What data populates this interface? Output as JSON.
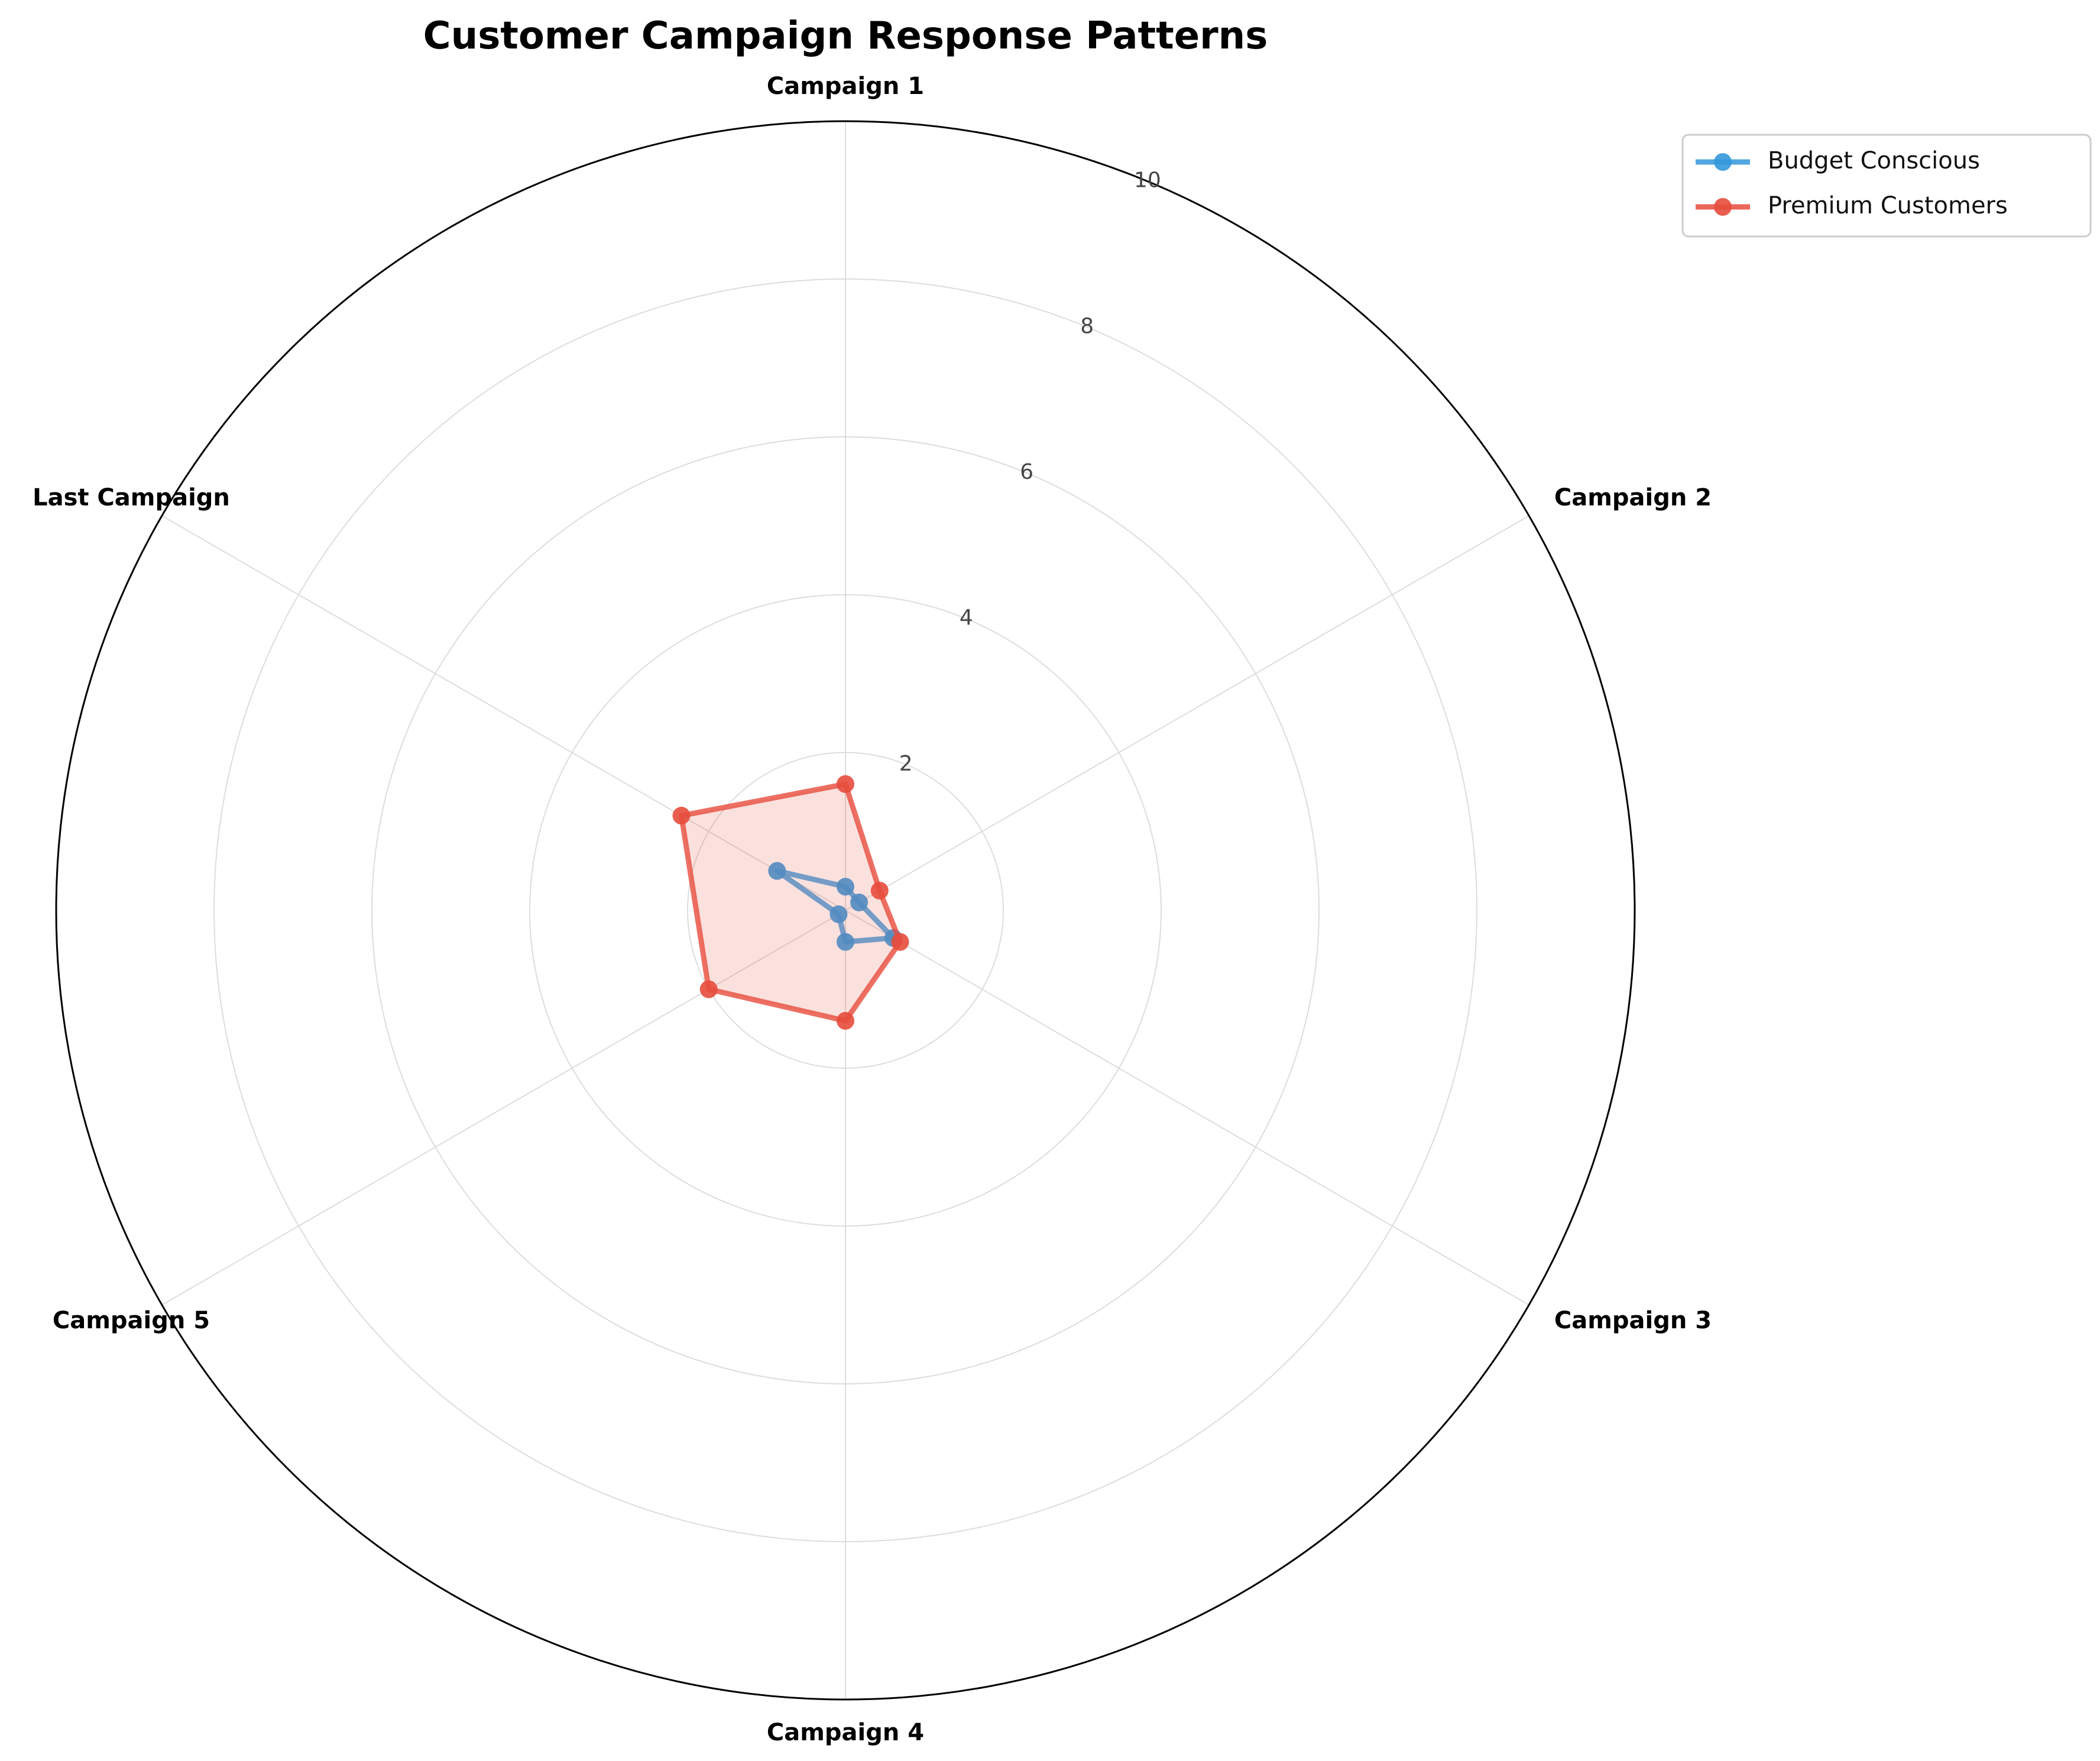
{
  "chart_data": {
    "type": "radar",
    "title": "Customer Campaign Response Patterns",
    "categories": [
      "Campaign 1",
      "Campaign 2",
      "Campaign 3",
      "Campaign 4",
      "Campaign 5",
      "Last Campaign"
    ],
    "rlim": [
      0,
      10
    ],
    "rticks": [
      "2",
      "4",
      "6",
      "8",
      "10"
    ],
    "grid": true,
    "legend_position": "top-right",
    "series": [
      {
        "name": "Budget Conscious",
        "color": "#3498db",
        "values": [
          0.3,
          0.2,
          0.7,
          0.4,
          0.1,
          1.0
        ],
        "filled": false
      },
      {
        "name": "Premium Customers",
        "color": "#e74c3c",
        "values": [
          1.6,
          0.5,
          0.8,
          1.4,
          2.0,
          2.4
        ],
        "filled": true
      }
    ]
  }
}
